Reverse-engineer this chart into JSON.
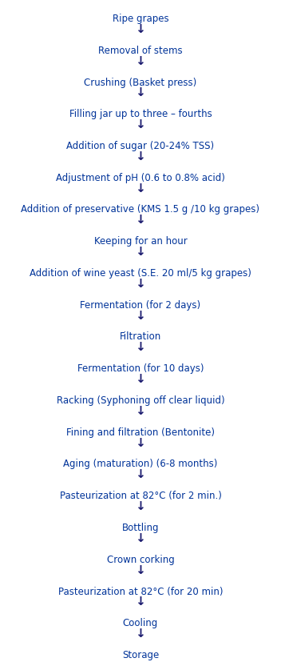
{
  "steps": [
    "Ripe grapes",
    "Removal of stems",
    "Crushing (Basket press)",
    "Filling jar up to three – fourths",
    "Addition of sugar (20-24% TSS)",
    "Adjustment of pH (0.6 to 0.8% acid)",
    "Addition of preservative (KMS 1.5 g /10 kg grapes)",
    "Keeping for an hour",
    "Addition of wine yeast (S.E. 20 ml/5 kg grapes)",
    "Fermentation (for 2 days)",
    "Filtration",
    "Fermentation (for 10 days)",
    "Racking (Syphoning off clear liquid)",
    "Fining and filtration (Bentonite)",
    "Aging (maturation) (6-8 months)",
    "Pasteurization at 82°C (for 2 min.)",
    "Bottling",
    "Crown corking",
    "Pasteurization at 82°C (for 20 min)",
    "Cooling",
    "Storage"
  ],
  "text_color": "#003399",
  "arrow_color": "#1a1a6e",
  "bg_color": "#ffffff",
  "font_size": 8.5,
  "fig_width": 3.52,
  "fig_height": 8.32,
  "dpi": 100
}
